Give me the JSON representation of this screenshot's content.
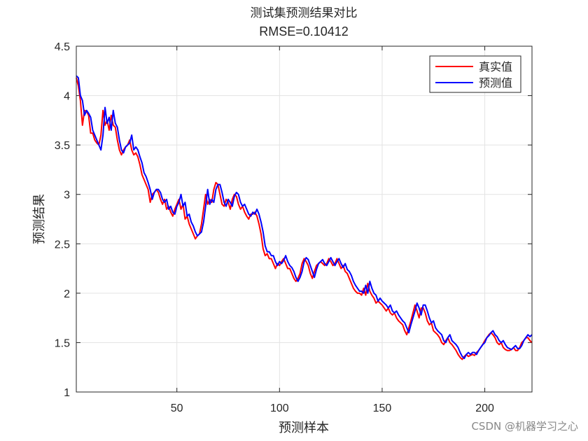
{
  "chart_data": {
    "type": "line",
    "title": "测试集预测结果对比",
    "subtitle": "RMSE=0.10412",
    "xlabel": "预测样本",
    "ylabel": "预测结果",
    "watermark": "CSDN @机器学习之心",
    "xlim": [
      1,
      223
    ],
    "xticks": [
      50,
      100,
      150,
      200
    ],
    "ylim": [
      1,
      4.5
    ],
    "yticks": [
      1,
      1.5,
      2,
      2.5,
      3,
      3.5,
      4,
      4.5
    ],
    "grid": true,
    "legend_position": "top-right",
    "x": [
      1,
      2,
      3,
      4,
      5,
      6,
      7,
      8,
      9,
      10,
      11,
      12,
      13,
      14,
      15,
      16,
      17,
      18,
      19,
      20,
      21,
      22,
      23,
      24,
      25,
      26,
      27,
      28,
      29,
      30,
      31,
      32,
      33,
      34,
      35,
      36,
      37,
      38,
      39,
      40,
      41,
      42,
      43,
      44,
      45,
      46,
      47,
      48,
      49,
      50,
      51,
      52,
      53,
      54,
      55,
      56,
      57,
      58,
      59,
      60,
      61,
      62,
      63,
      64,
      65,
      66,
      67,
      68,
      69,
      70,
      71,
      72,
      73,
      74,
      75,
      76,
      77,
      78,
      79,
      80,
      81,
      82,
      83,
      84,
      85,
      86,
      87,
      88,
      89,
      90,
      91,
      92,
      93,
      94,
      95,
      96,
      97,
      98,
      99,
      100,
      101,
      102,
      103,
      104,
      105,
      106,
      107,
      108,
      109,
      110,
      111,
      112,
      113,
      114,
      115,
      116,
      117,
      118,
      119,
      120,
      121,
      122,
      123,
      124,
      125,
      126,
      127,
      128,
      129,
      130,
      131,
      132,
      133,
      134,
      135,
      136,
      137,
      138,
      139,
      140,
      141,
      142,
      143,
      144,
      145,
      146,
      147,
      148,
      149,
      150,
      151,
      152,
      153,
      154,
      155,
      156,
      157,
      158,
      159,
      160,
      161,
      162,
      163,
      164,
      165,
      166,
      167,
      168,
      169,
      170,
      171,
      172,
      173,
      174,
      175,
      176,
      177,
      178,
      179,
      180,
      181,
      182,
      183,
      184,
      185,
      186,
      187,
      188,
      189,
      190,
      191,
      192,
      193,
      194,
      195,
      196,
      197,
      198,
      199,
      200,
      201,
      202,
      203,
      204,
      205,
      206,
      207,
      208,
      209,
      210,
      211,
      212,
      213,
      214,
      215,
      216,
      217,
      218,
      219,
      220,
      221,
      222,
      223
    ],
    "series": [
      {
        "name": "真实值",
        "color": "#ff0000",
        "values": [
          4.18,
          4.1,
          3.95,
          3.7,
          3.85,
          3.84,
          3.8,
          3.62,
          3.62,
          3.55,
          3.52,
          3.5,
          3.6,
          3.85,
          3.7,
          3.75,
          3.65,
          3.8,
          3.7,
          3.68,
          3.55,
          3.45,
          3.4,
          3.45,
          3.48,
          3.5,
          3.55,
          3.45,
          3.4,
          3.42,
          3.38,
          3.3,
          3.2,
          3.15,
          3.1,
          3.05,
          2.92,
          3.0,
          3.02,
          3.05,
          3.02,
          2.95,
          2.9,
          2.95,
          2.85,
          2.88,
          2.82,
          2.78,
          2.85,
          2.9,
          2.95,
          2.85,
          2.9,
          2.75,
          2.78,
          2.7,
          2.65,
          2.6,
          2.55,
          2.58,
          2.6,
          2.7,
          2.85,
          3.0,
          2.9,
          2.95,
          2.92,
          3.05,
          3.12,
          3.1,
          3.0,
          2.9,
          2.88,
          2.95,
          2.92,
          2.85,
          2.95,
          3.0,
          2.98,
          2.9,
          2.85,
          2.88,
          2.82,
          2.78,
          2.75,
          2.8,
          2.8,
          2.82,
          2.78,
          2.7,
          2.6,
          2.45,
          2.38,
          2.4,
          2.35,
          2.35,
          2.3,
          2.25,
          2.3,
          2.28,
          2.32,
          2.35,
          2.3,
          2.25,
          2.25,
          2.2,
          2.15,
          2.12,
          2.15,
          2.2,
          2.3,
          2.35,
          2.32,
          2.28,
          2.2,
          2.15,
          2.22,
          2.28,
          2.3,
          2.32,
          2.3,
          2.28,
          2.3,
          2.35,
          2.32,
          2.28,
          2.3,
          2.35,
          2.3,
          2.25,
          2.28,
          2.22,
          2.2,
          2.15,
          2.1,
          2.05,
          2.02,
          2.0,
          2.0,
          1.98,
          2.05,
          1.98,
          2.1,
          2.02,
          1.98,
          1.95,
          1.9,
          1.92,
          1.9,
          1.88,
          1.85,
          1.82,
          1.85,
          1.8,
          1.78,
          1.8,
          1.75,
          1.72,
          1.7,
          1.68,
          1.62,
          1.58,
          1.65,
          1.72,
          1.8,
          1.88,
          1.82,
          1.75,
          1.85,
          1.85,
          1.8,
          1.72,
          1.68,
          1.7,
          1.62,
          1.6,
          1.58,
          1.55,
          1.5,
          1.48,
          1.52,
          1.55,
          1.5,
          1.48,
          1.45,
          1.42,
          1.38,
          1.35,
          1.33,
          1.36,
          1.38,
          1.36,
          1.37,
          1.38,
          1.37,
          1.4,
          1.42,
          1.45,
          1.48,
          1.52,
          1.55,
          1.58,
          1.6,
          1.58,
          1.55,
          1.5,
          1.48,
          1.5,
          1.45,
          1.43,
          1.42,
          1.42,
          1.43,
          1.45,
          1.42,
          1.42,
          1.45,
          1.5,
          1.52,
          1.55,
          1.55,
          1.52,
          1.5
        ]
      },
      {
        "name": "预测值",
        "color": "#0000ff",
        "values": [
          4.2,
          4.18,
          4.0,
          3.95,
          3.8,
          3.85,
          3.82,
          3.78,
          3.65,
          3.6,
          3.55,
          3.5,
          3.45,
          3.6,
          3.88,
          3.72,
          3.78,
          3.65,
          3.85,
          3.72,
          3.68,
          3.55,
          3.45,
          3.42,
          3.48,
          3.5,
          3.52,
          3.6,
          3.45,
          3.48,
          3.45,
          3.38,
          3.32,
          3.22,
          3.18,
          3.12,
          3.05,
          2.95,
          3.02,
          3.05,
          3.05,
          3.02,
          2.95,
          2.92,
          2.95,
          2.85,
          2.88,
          2.82,
          2.8,
          2.88,
          2.92,
          3.0,
          2.88,
          2.92,
          2.78,
          2.8,
          2.72,
          2.68,
          2.62,
          2.58,
          2.6,
          2.62,
          2.72,
          2.88,
          3.05,
          2.9,
          2.95,
          2.92,
          3.05,
          3.1,
          3.1,
          3.02,
          2.92,
          2.88,
          2.95,
          2.92,
          2.88,
          2.98,
          3.02,
          3.0,
          2.92,
          2.88,
          2.9,
          2.85,
          2.8,
          2.78,
          2.82,
          2.8,
          2.85,
          2.8,
          2.72,
          2.62,
          2.48,
          2.42,
          2.42,
          2.38,
          2.38,
          2.32,
          2.28,
          2.32,
          2.3,
          2.33,
          2.38,
          2.32,
          2.28,
          2.26,
          2.22,
          2.16,
          2.12,
          2.16,
          2.22,
          2.32,
          2.36,
          2.34,
          2.28,
          2.22,
          2.16,
          2.24,
          2.3,
          2.32,
          2.34,
          2.3,
          2.28,
          2.32,
          2.36,
          2.32,
          2.28,
          2.32,
          2.35,
          2.3,
          2.26,
          2.3,
          2.24,
          2.22,
          2.18,
          2.12,
          2.08,
          2.05,
          2.02,
          2.02,
          2.0,
          2.08,
          2.0,
          2.12,
          2.05,
          2.0,
          1.98,
          1.92,
          1.95,
          1.92,
          1.9,
          1.88,
          1.85,
          1.88,
          1.82,
          1.8,
          1.82,
          1.78,
          1.75,
          1.72,
          1.7,
          1.65,
          1.6,
          1.68,
          1.75,
          1.82,
          1.9,
          1.85,
          1.78,
          1.88,
          1.88,
          1.82,
          1.75,
          1.7,
          1.72,
          1.65,
          1.62,
          1.6,
          1.58,
          1.52,
          1.5,
          1.55,
          1.58,
          1.52,
          1.5,
          1.48,
          1.45,
          1.4,
          1.36,
          1.34,
          1.38,
          1.4,
          1.38,
          1.4,
          1.4,
          1.38,
          1.42,
          1.45,
          1.48,
          1.5,
          1.55,
          1.57,
          1.6,
          1.62,
          1.58,
          1.56,
          1.52,
          1.5,
          1.52,
          1.48,
          1.45,
          1.44,
          1.43,
          1.45,
          1.47,
          1.44,
          1.44,
          1.47,
          1.52,
          1.55,
          1.58,
          1.56,
          1.58
        ]
      }
    ]
  }
}
